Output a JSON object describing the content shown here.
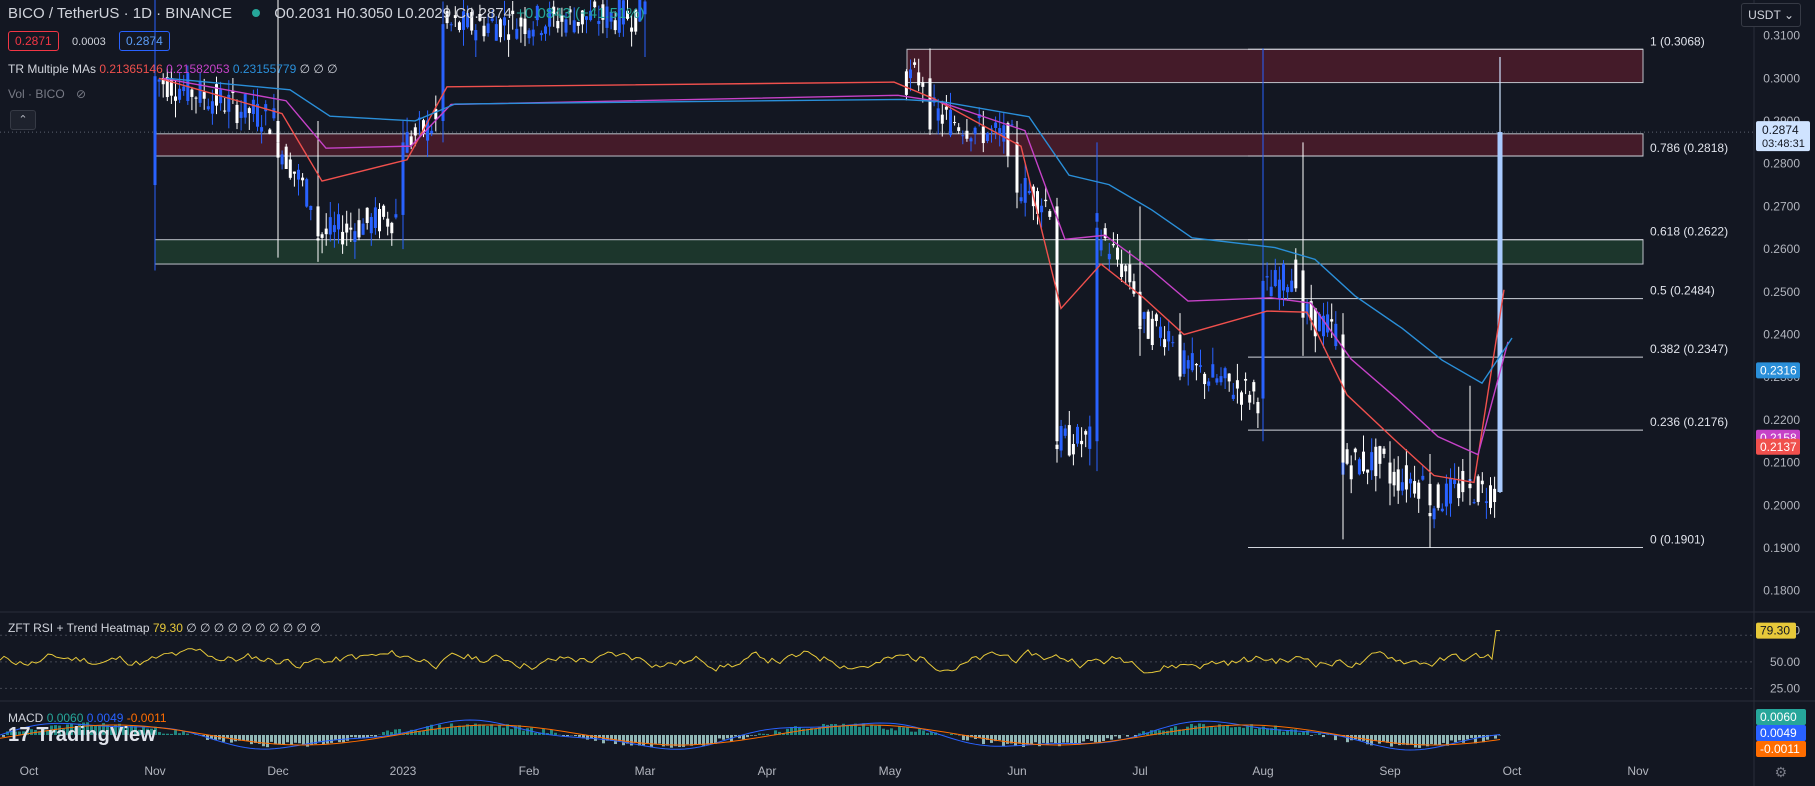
{
  "header": {
    "symbol": "BICO / TetherUS · 1D · BINANCE",
    "ohlc": "O0.2031 H0.3050 L0.2029 C0.2874",
    "change": "+0.0843 (+41.51%)",
    "sell_price": "0.2871",
    "spread": "0.0003",
    "buy_price": "0.2874",
    "currency": "USDT"
  },
  "indicators": {
    "ma_name": "TR Multiple MAs",
    "ma_values": [
      "0.21365146",
      "0.21582053",
      "0.23155779"
    ],
    "ma_suffix": "∅ ∅ ∅",
    "vol": "Vol · BICO",
    "rsi_name": "ZFT RSI + Trend Heatmap",
    "rsi_value": "79.30",
    "rsi_suffix": "∅ ∅ ∅ ∅ ∅ ∅ ∅ ∅ ∅ ∅",
    "macd_name": "MACD",
    "macd_values": [
      "0.0060",
      "0.0049",
      "-0.0011"
    ]
  },
  "logo": "TradingView",
  "colors": {
    "up": "#2962ff",
    "down": "#ffffff",
    "ma_fast": "#f0504d",
    "ma_mid": "#c642c8",
    "ma_slow": "#2a8fd9",
    "rsi": "#e7c93a",
    "macd_line": "#2962ff",
    "signal_line": "#ff6d00",
    "resistance_zone": "#4a1c2a",
    "support_zone": "#1d3a2e"
  },
  "chart_data": {
    "type": "candlestick",
    "y_ticks": [
      "0.3100",
      "0.3000",
      "0.2900",
      "0.2800",
      "0.2700",
      "0.2600",
      "0.2500",
      "0.2400",
      "0.2300",
      "0.2200",
      "0.2100",
      "0.2000",
      "0.1900",
      "0.1800"
    ],
    "ylim": [
      0.175,
      0.316
    ],
    "x_ticks": [
      "Oct",
      "Nov",
      "Dec",
      "2023",
      "Feb",
      "Mar",
      "Apr",
      "May",
      "Jun",
      "Jul",
      "Aug",
      "Sep",
      "Oct",
      "Nov"
    ],
    "last_price_label": "0.2874",
    "countdown": "03:48:31",
    "ma_labels": [
      {
        "value": 0.2316,
        "text": "0.2316",
        "color": "#2a8fd9"
      },
      {
        "value": 0.2158,
        "text": "0.2158",
        "color": "#c642c8"
      },
      {
        "value": 0.2137,
        "text": "0.2137",
        "color": "#f0504d"
      }
    ],
    "fib_levels": [
      {
        "label": "1 (0.3068)",
        "value": 0.3068
      },
      {
        "label": "0.786 (0.2818)",
        "value": 0.2818
      },
      {
        "label": "0.618 (0.2622)",
        "value": 0.2622
      },
      {
        "label": "0.5 (0.2484)",
        "value": 0.2484
      },
      {
        "label": "0.382 (0.2347)",
        "value": 0.2347
      },
      {
        "label": "0.236 (0.2176)",
        "value": 0.2176
      },
      {
        "label": "0 (0.1901)",
        "value": 0.1901
      }
    ],
    "zones": [
      {
        "kind": "resistance",
        "from_date": "May",
        "top": 0.3068,
        "bottom": 0.299
      },
      {
        "kind": "resistance",
        "from_date": "Nov",
        "top": 0.287,
        "bottom": 0.2818
      },
      {
        "kind": "support",
        "from_date": "Nov",
        "top": 0.2622,
        "bottom": 0.2565
      }
    ],
    "candles": [
      {
        "date": "Nov",
        "o": 0.275,
        "h": 0.319,
        "l": 0.255,
        "c": 0.3
      },
      {
        "date": "Dec",
        "o": 0.29,
        "h": 0.32,
        "l": 0.258,
        "c": 0.285
      },
      {
        "date": "Dec",
        "o": 0.27,
        "h": 0.29,
        "l": 0.257,
        "c": 0.263
      },
      {
        "date": "2023",
        "o": 0.268,
        "h": 0.29,
        "l": 0.26,
        "c": 0.285
      },
      {
        "date": "2023",
        "o": 0.29,
        "h": 0.318,
        "l": 0.285,
        "c": 0.312
      },
      {
        "date": "Mar",
        "o": 0.315,
        "h": 0.32,
        "l": 0.305,
        "c": 0.318
      },
      {
        "date": "May",
        "o": 0.305,
        "h": 0.32,
        "l": 0.298,
        "c": 0.3
      },
      {
        "date": "May",
        "o": 0.3,
        "h": 0.307,
        "l": 0.288,
        "c": 0.292
      },
      {
        "date": "Jun",
        "o": 0.285,
        "h": 0.29,
        "l": 0.27,
        "c": 0.275
      },
      {
        "date": "Jun",
        "o": 0.27,
        "h": 0.272,
        "l": 0.21,
        "c": 0.215
      },
      {
        "date": "Jun",
        "o": 0.215,
        "h": 0.285,
        "l": 0.208,
        "c": 0.265
      },
      {
        "date": "Jul",
        "o": 0.25,
        "h": 0.27,
        "l": 0.235,
        "c": 0.242
      },
      {
        "date": "Jul",
        "o": 0.24,
        "h": 0.245,
        "l": 0.23,
        "c": 0.233
      },
      {
        "date": "Aug",
        "o": 0.225,
        "h": 0.307,
        "l": 0.215,
        "c": 0.25
      },
      {
        "date": "Aug",
        "o": 0.255,
        "h": 0.285,
        "l": 0.235,
        "c": 0.245
      },
      {
        "date": "Aug",
        "o": 0.24,
        "h": 0.245,
        "l": 0.192,
        "c": 0.21
      },
      {
        "date": "Sep",
        "o": 0.21,
        "h": 0.215,
        "l": 0.2,
        "c": 0.207
      },
      {
        "date": "Sep",
        "o": 0.205,
        "h": 0.212,
        "l": 0.19,
        "c": 0.2
      },
      {
        "date": "Sep",
        "o": 0.205,
        "h": 0.228,
        "l": 0.2,
        "c": 0.204
      },
      {
        "date": "Oct",
        "o": 0.2031,
        "h": 0.305,
        "l": 0.2029,
        "c": 0.2874
      }
    ],
    "rsi": {
      "ticks": [
        "79.30",
        "50.00",
        "25.00"
      ],
      "ylim": [
        15,
        95
      ],
      "upper": 75,
      "mid": 50,
      "lower": 25,
      "last": 79.3
    },
    "macd": {
      "labels": [
        "0.0060",
        "0.0049",
        "-0.0011"
      ]
    }
  }
}
